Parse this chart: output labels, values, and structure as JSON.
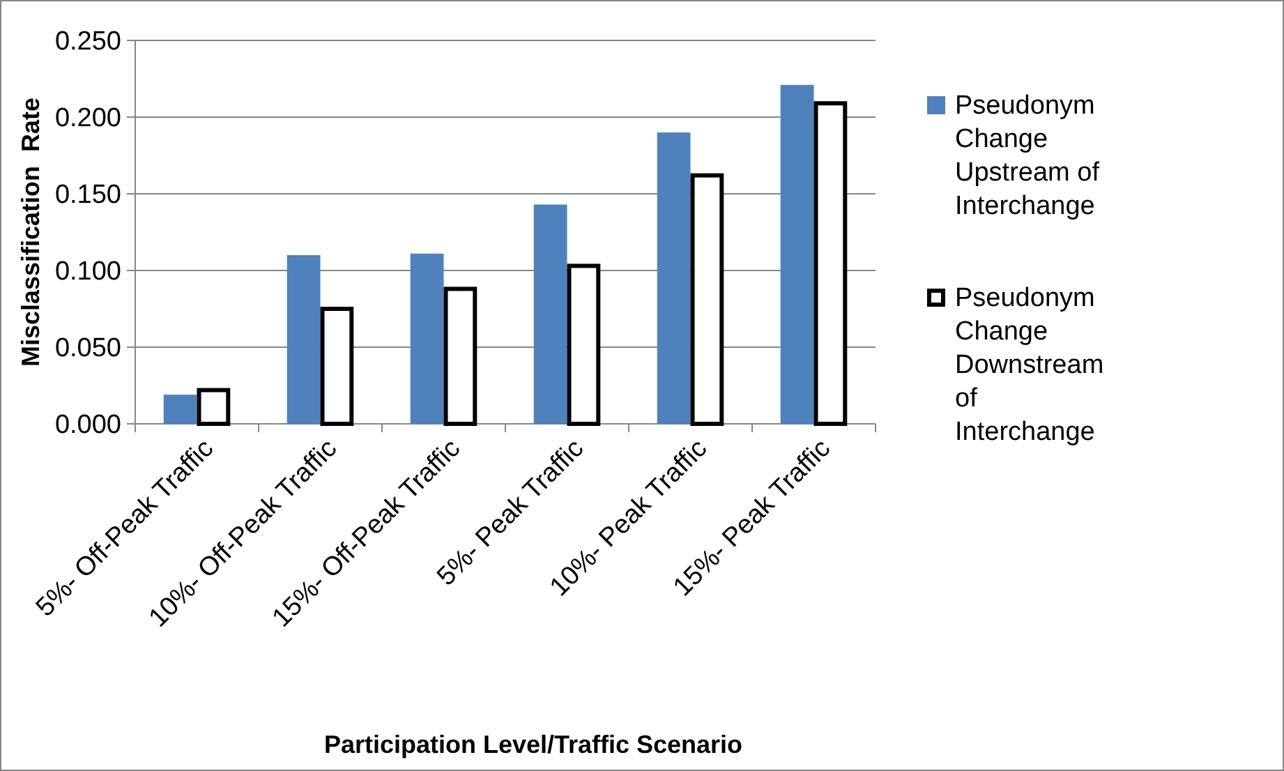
{
  "chart_data": {
    "type": "bar",
    "xlabel": "Participation Level/Traffic Scenario",
    "ylabel": "Misclassification  Rate",
    "categories": [
      "5%- Off-Peak Traffic",
      "10%- Off-Peak Traffic",
      "15%- Off-Peak Traffic",
      "5%- Peak Traffic",
      "10%- Peak Traffic",
      "15%- Peak Traffic"
    ],
    "series": [
      {
        "name": "Pseudonym Change Upstream of Interchange",
        "color": "#4f81bd",
        "values": [
          0.019,
          0.11,
          0.111,
          0.143,
          0.19,
          0.221
        ]
      },
      {
        "name": "Pseudonym Change Downstream of Interchange",
        "color": "#ffffff",
        "values": [
          0.022,
          0.075,
          0.088,
          0.103,
          0.162,
          0.209
        ]
      }
    ],
    "ylim": [
      0,
      0.25
    ],
    "yticks": [
      {
        "value": 0,
        "label": "0.000"
      },
      {
        "value": 0.05,
        "label": "0.050"
      },
      {
        "value": 0.1,
        "label": "0.100"
      },
      {
        "value": 0.15,
        "label": "0.150"
      },
      {
        "value": 0.2,
        "label": "0.200"
      },
      {
        "value": 0.25,
        "label": "0.250"
      }
    ],
    "grid": "y",
    "legend": "right"
  }
}
